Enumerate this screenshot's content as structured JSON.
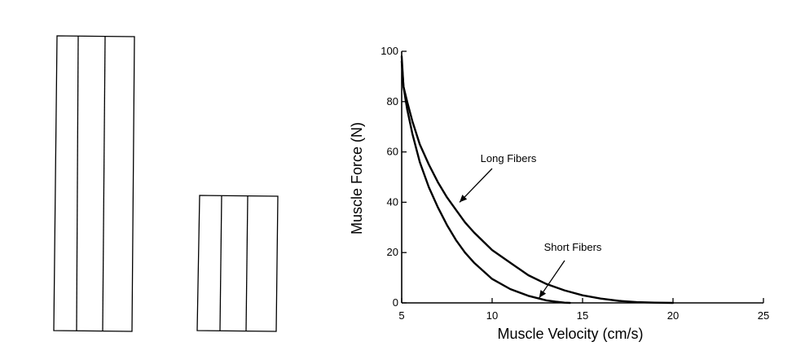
{
  "chart_data": {
    "type": "line",
    "title": "",
    "xlabel": "Muscle Velocity (cm/s)",
    "ylabel": "Muscle Force (N)",
    "xlim": [
      5,
      25
    ],
    "ylim": [
      0,
      100
    ],
    "xticks": [
      5,
      10,
      15,
      20,
      25
    ],
    "yticks": [
      0,
      20,
      40,
      60,
      80,
      100
    ],
    "grid": false,
    "legend": "none",
    "series": [
      {
        "name": "Long Fibers",
        "color": "#000000",
        "x": [
          5.0,
          5.1,
          5.3,
          5.6,
          6.0,
          6.5,
          7.0,
          7.5,
          8.0,
          8.5,
          9.0,
          10.0,
          11.0,
          12.0,
          13.0,
          14.0,
          15.0,
          16.0,
          17.0,
          18.0,
          19.0,
          20.0
        ],
        "y": [
          96,
          86,
          80,
          72,
          63,
          55,
          48,
          42,
          37,
          32,
          28,
          21,
          16,
          11,
          7.5,
          5,
          3,
          1.7,
          0.8,
          0.3,
          0.1,
          0
        ]
      },
      {
        "name": "Short Fibers",
        "color": "#000000",
        "x": [
          5.0,
          5.1,
          5.3,
          5.6,
          6.0,
          6.5,
          7.0,
          7.5,
          8.0,
          8.5,
          9.0,
          10.0,
          11.0,
          12.0,
          13.0,
          13.5,
          14.0,
          14.3
        ],
        "y": [
          98,
          86,
          77,
          67,
          56,
          46,
          38,
          31,
          25,
          20,
          16,
          9.5,
          5.5,
          2.8,
          1.0,
          0.5,
          0.1,
          0
        ]
      }
    ],
    "annotations": [
      {
        "text": "Long Fibers",
        "target": [
          8.2,
          40
        ]
      },
      {
        "text": "Short Fibers",
        "target": [
          12.6,
          2
        ]
      }
    ]
  }
}
